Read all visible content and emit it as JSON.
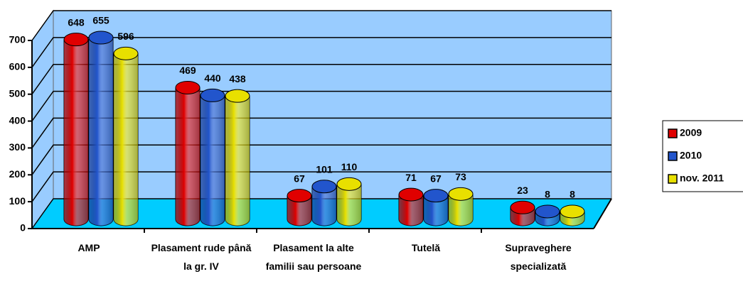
{
  "chart_data": {
    "type": "bar3d",
    "categories": [
      "AMP",
      "Plasament rude până la gr. IV",
      "Plasament la alte familii sau persoane",
      "Tutelă",
      "Supraveghere specializată"
    ],
    "series": [
      {
        "name": "2009",
        "color": "#e00000",
        "values": [
          648,
          469,
          67,
          71,
          23
        ]
      },
      {
        "name": "2010",
        "color": "#2255cc",
        "values": [
          655,
          440,
          101,
          67,
          8
        ]
      },
      {
        "name": "nov. 2011",
        "color": "#e8e000",
        "values": [
          596,
          438,
          110,
          73,
          8
        ]
      }
    ],
    "ylim": [
      0,
      700
    ],
    "yticks": [
      0,
      100,
      200,
      300,
      400,
      500,
      600,
      700
    ],
    "grid": true,
    "legend": "right"
  }
}
